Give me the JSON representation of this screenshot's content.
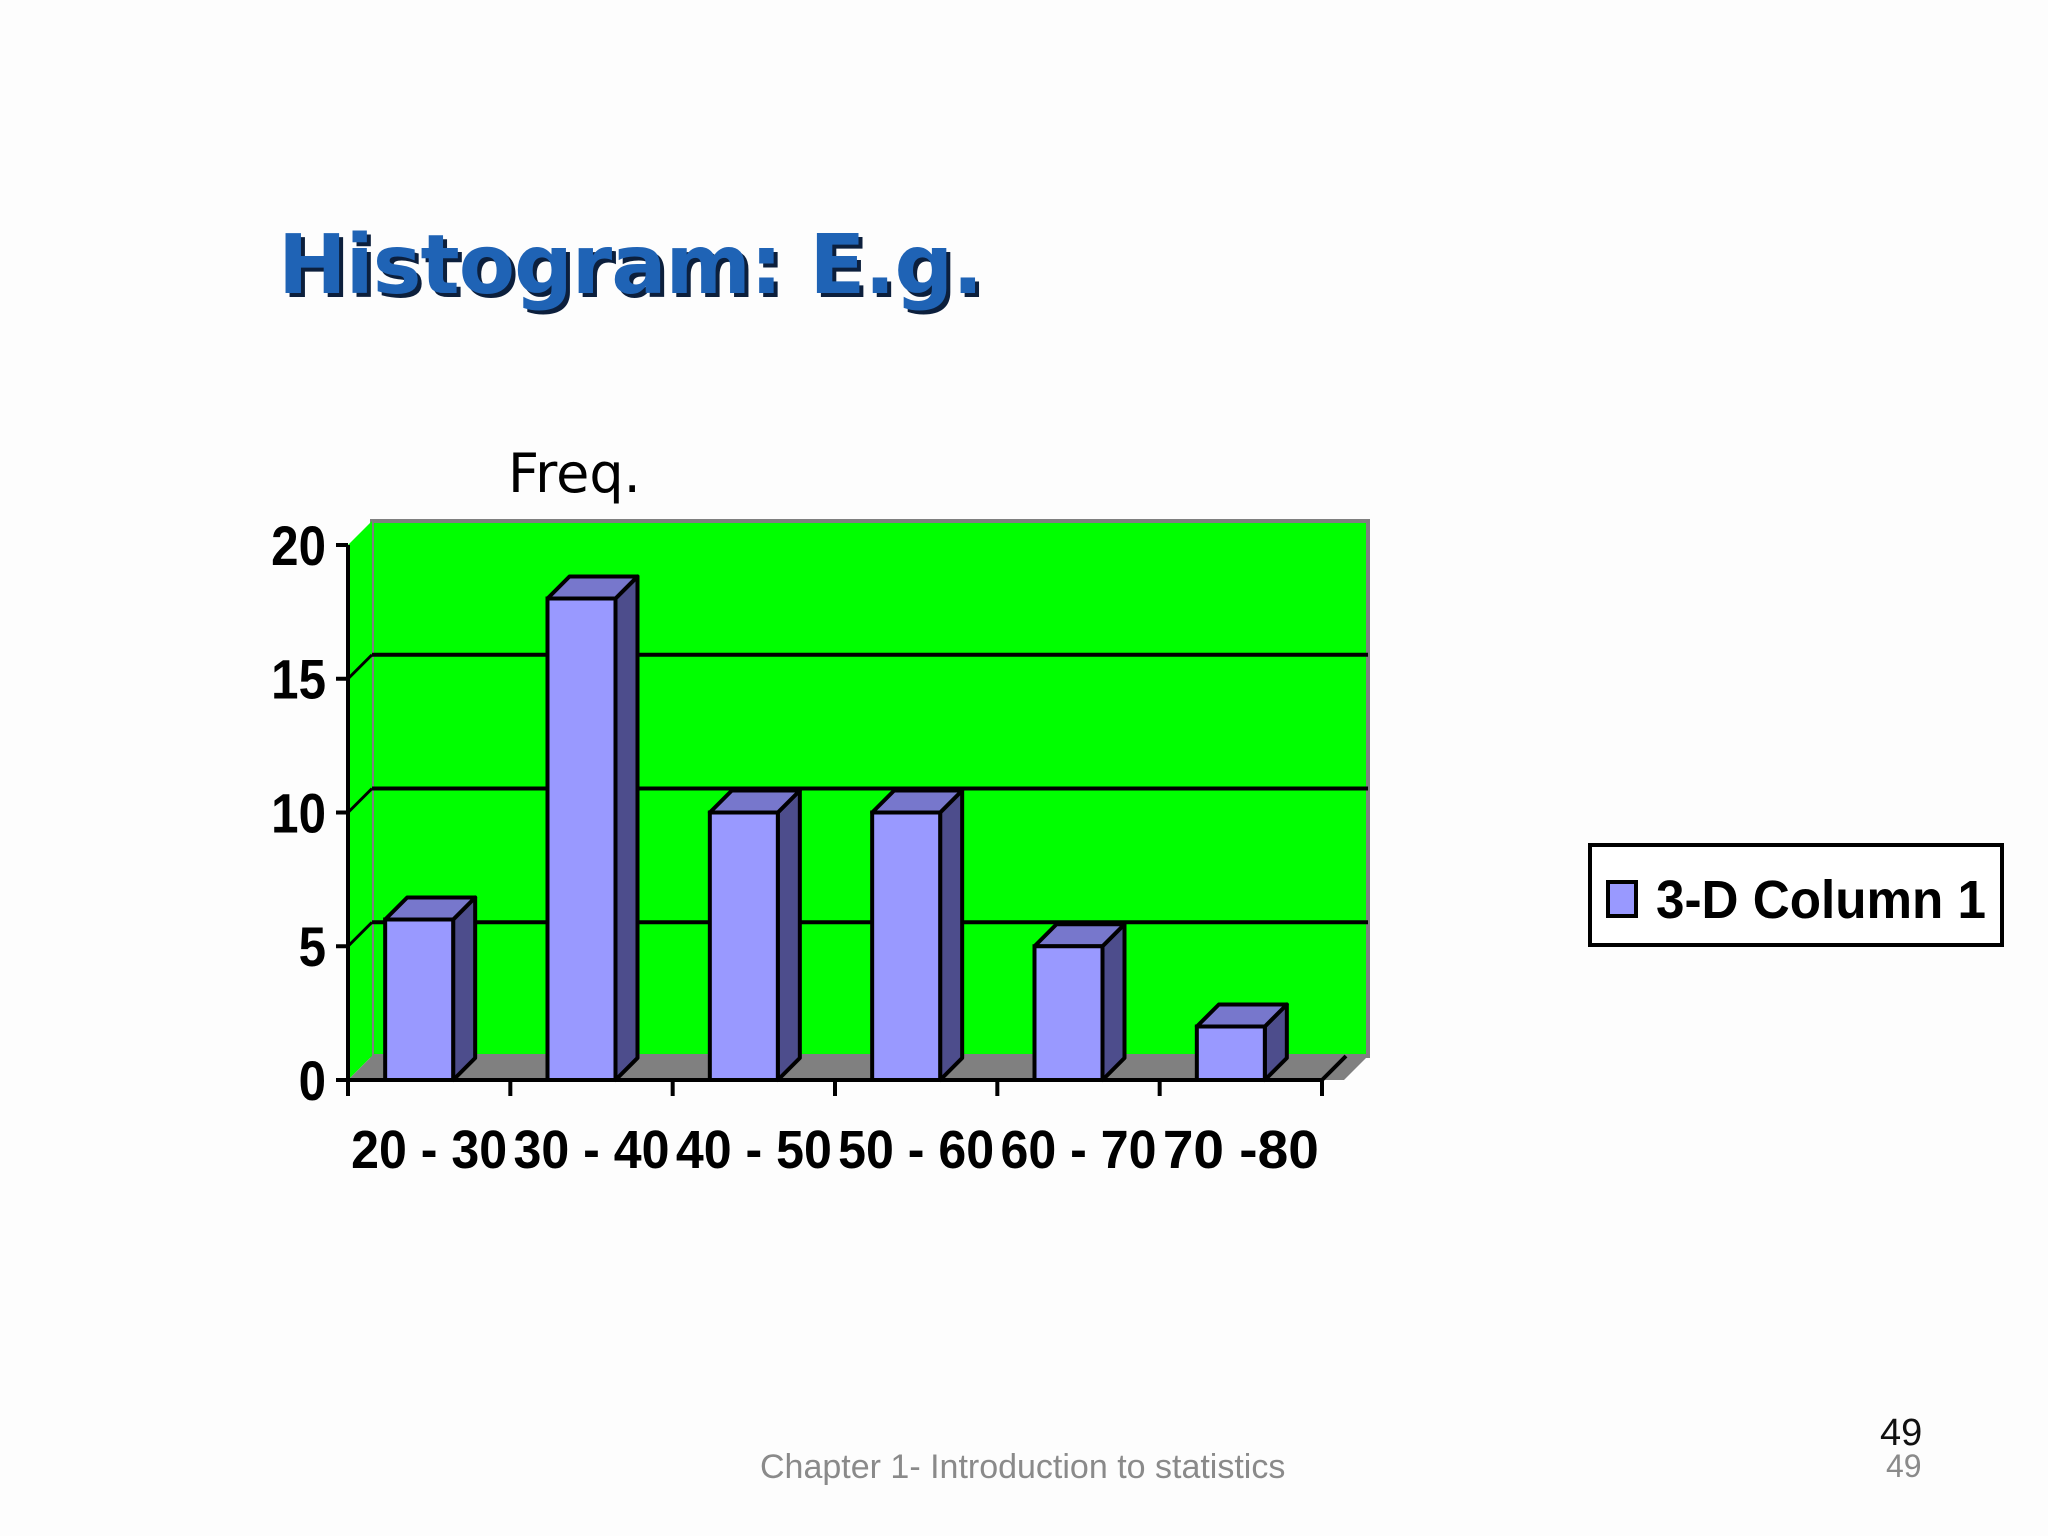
{
  "slide": {
    "title": "Histogram: E.g.",
    "footer": "Chapter 1- Introduction to statistics",
    "page_number": "49",
    "page_number_repeat": "49"
  },
  "colors": {
    "plot_background": "#00ff00",
    "bar_front": "#9999ff",
    "bar_side": "#4d4d8c",
    "bar_top": "#7777cc",
    "floor": "#808080",
    "title": "#1f63b5"
  },
  "chart_data": {
    "type": "bar",
    "title": "",
    "ylabel": "Freq.",
    "xlabel": "",
    "categories": [
      "20 - 30",
      "30 - 40",
      "40 - 50",
      "50 - 60",
      "60 - 70",
      "70 -80"
    ],
    "series": [
      {
        "name": "3-D Column 1",
        "values": [
          6,
          18,
          10,
          10,
          5,
          2
        ]
      }
    ],
    "ylim": [
      0,
      20
    ],
    "yticks": [
      "0",
      "5",
      "10",
      "15",
      "20"
    ],
    "grid": true,
    "legend": "right",
    "style": "3d-column"
  }
}
